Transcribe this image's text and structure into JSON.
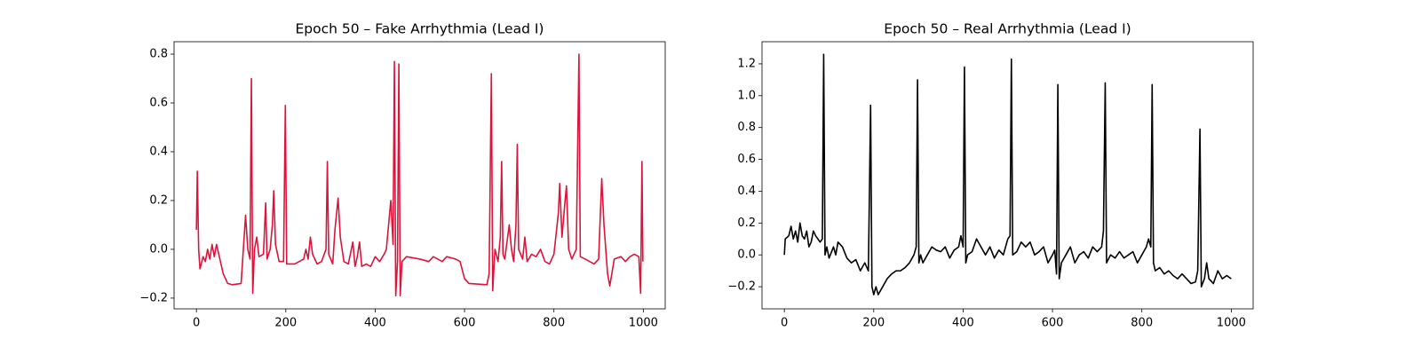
{
  "chart_data": [
    {
      "type": "line",
      "title": "Epoch 50 – Fake Arrhythmia (Lead I)",
      "color": "#dc143c",
      "x": [
        0,
        2,
        5,
        8,
        15,
        20,
        25,
        30,
        35,
        40,
        45,
        50,
        60,
        70,
        80,
        100,
        105,
        110,
        115,
        120,
        123,
        126,
        130,
        135,
        140,
        150,
        155,
        158,
        165,
        170,
        173,
        177,
        185,
        195,
        199,
        202,
        220,
        240,
        245,
        250,
        255,
        260,
        270,
        280,
        290,
        293,
        296,
        305,
        310,
        317,
        322,
        330,
        340,
        350,
        355,
        360,
        365,
        370,
        380,
        390,
        400,
        410,
        420,
        425,
        430,
        435,
        440,
        443,
        446,
        450,
        453,
        456,
        460,
        470,
        500,
        520,
        530,
        540,
        550,
        560,
        580,
        590,
        600,
        610,
        650,
        655,
        660,
        663,
        668,
        675,
        680,
        683,
        686,
        690,
        700,
        705,
        710,
        715,
        718,
        721,
        730,
        735,
        740,
        750,
        760,
        770,
        780,
        790,
        800,
        810,
        813,
        818,
        825,
        828,
        833,
        840,
        850,
        856,
        859,
        870,
        880,
        890,
        900,
        907,
        912,
        920,
        925,
        935,
        950,
        960,
        970,
        980,
        990,
        994,
        997,
        999
      ],
      "values": [
        0.08,
        0.32,
        0.0,
        -0.08,
        -0.03,
        -0.05,
        0.0,
        -0.04,
        0.02,
        -0.03,
        0.02,
        -0.02,
        -0.1,
        -0.14,
        -0.145,
        -0.14,
        0.0,
        0.14,
        0.0,
        -0.04,
        0.7,
        -0.18,
        0.0,
        0.05,
        -0.03,
        -0.02,
        0.19,
        -0.04,
        0.0,
        0.1,
        0.24,
        0.02,
        -0.05,
        -0.05,
        0.59,
        -0.06,
        -0.06,
        -0.04,
        0.0,
        -0.04,
        0.05,
        -0.02,
        -0.06,
        -0.05,
        0.0,
        0.36,
        -0.02,
        -0.06,
        0.08,
        0.21,
        0.05,
        -0.05,
        -0.06,
        0.03,
        -0.07,
        -0.03,
        0.03,
        -0.07,
        -0.06,
        -0.07,
        -0.03,
        -0.05,
        -0.02,
        0.0,
        0.1,
        0.2,
        0.02,
        0.77,
        -0.19,
        -0.05,
        0.76,
        -0.19,
        -0.05,
        -0.03,
        -0.04,
        -0.05,
        -0.03,
        -0.04,
        -0.05,
        -0.03,
        -0.04,
        -0.05,
        -0.12,
        -0.14,
        -0.145,
        -0.1,
        0.72,
        -0.17,
        0.0,
        -0.05,
        0.05,
        0.36,
        -0.02,
        -0.04,
        0.1,
        0.0,
        -0.05,
        0.1,
        0.43,
        0.0,
        -0.04,
        0.05,
        -0.05,
        -0.02,
        -0.03,
        0.0,
        -0.05,
        -0.06,
        -0.02,
        0.15,
        0.27,
        0.05,
        0.2,
        0.26,
        0.0,
        -0.04,
        0.0,
        0.8,
        -0.03,
        -0.04,
        -0.05,
        -0.06,
        -0.04,
        0.29,
        0.1,
        -0.1,
        -0.15,
        -0.04,
        -0.03,
        -0.05,
        -0.03,
        -0.02,
        -0.03,
        -0.18,
        0.36,
        -0.05
      ],
      "xlim": [
        -50,
        1049
      ],
      "xticks": [
        0,
        200,
        400,
        600,
        800,
        1000
      ],
      "ylim": [
        -0.244,
        0.851
      ],
      "yticks": [
        {
          "value": -0.2,
          "label": "−0.2"
        },
        {
          "value": 0,
          "label": "0.0"
        },
        0.2,
        0.4,
        0.6,
        0.8
      ]
    },
    {
      "type": "line",
      "title": "Epoch 50 – Real Arrhythmia (Lead I)",
      "color": "#000000",
      "x": [
        0,
        2,
        10,
        15,
        20,
        25,
        30,
        35,
        40,
        45,
        50,
        55,
        60,
        65,
        70,
        75,
        80,
        85,
        88,
        91,
        95,
        100,
        110,
        115,
        120,
        130,
        140,
        150,
        160,
        170,
        180,
        188,
        193,
        196,
        200,
        205,
        210,
        220,
        230,
        240,
        250,
        260,
        270,
        280,
        290,
        295,
        298,
        301,
        305,
        310,
        320,
        330,
        340,
        350,
        360,
        370,
        380,
        390,
        395,
        400,
        403,
        406,
        410,
        420,
        430,
        440,
        450,
        460,
        470,
        480,
        490,
        500,
        505,
        508,
        511,
        520,
        530,
        540,
        550,
        560,
        570,
        580,
        590,
        600,
        605,
        609,
        612,
        615,
        620,
        630,
        640,
        650,
        660,
        670,
        680,
        690,
        700,
        710,
        714,
        718,
        721,
        730,
        740,
        750,
        760,
        770,
        780,
        790,
        800,
        810,
        815,
        820,
        823,
        826,
        830,
        840,
        850,
        860,
        870,
        880,
        890,
        900,
        910,
        920,
        925,
        930,
        933,
        940,
        945,
        950,
        960,
        970,
        980,
        990,
        1000
      ],
      "values": [
        0.0,
        0.1,
        0.12,
        0.18,
        0.1,
        0.15,
        0.08,
        0.2,
        0.12,
        0.1,
        0.15,
        0.05,
        0.08,
        0.15,
        0.12,
        0.1,
        0.08,
        0.1,
        1.26,
        0.0,
        0.05,
        -0.02,
        0.05,
        0.0,
        0.08,
        0.05,
        -0.02,
        -0.05,
        -0.03,
        -0.1,
        -0.05,
        -0.1,
        0.94,
        -0.2,
        -0.25,
        -0.2,
        -0.25,
        -0.2,
        -0.15,
        -0.12,
        -0.1,
        -0.1,
        -0.08,
        -0.05,
        0.0,
        0.05,
        1.1,
        -0.05,
        0.0,
        -0.05,
        0.0,
        0.05,
        0.03,
        0.02,
        0.05,
        -0.02,
        0.03,
        0.05,
        0.12,
        0.05,
        1.18,
        -0.05,
        0.0,
        0.02,
        0.1,
        0.05,
        0.0,
        0.05,
        -0.02,
        0.03,
        0.0,
        0.1,
        0.12,
        1.23,
        0.0,
        0.02,
        0.08,
        0.05,
        0.08,
        0.0,
        0.02,
        0.05,
        -0.05,
        0.0,
        0.03,
        -0.12,
        1.07,
        -0.15,
        -0.05,
        0.0,
        0.05,
        -0.05,
        0.0,
        0.02,
        -0.02,
        0.05,
        0.02,
        0.05,
        0.15,
        1.08,
        -0.05,
        0.0,
        -0.02,
        0.02,
        -0.02,
        0.0,
        0.02,
        -0.05,
        0.0,
        0.05,
        0.1,
        0.05,
        1.07,
        -0.05,
        -0.1,
        -0.08,
        -0.12,
        -0.1,
        -0.13,
        -0.15,
        -0.12,
        -0.15,
        -0.18,
        -0.17,
        -0.1,
        0.79,
        -0.2,
        -0.15,
        -0.05,
        -0.15,
        -0.18,
        -0.1,
        -0.15,
        -0.13,
        -0.15
      ],
      "xlim": [
        -50,
        1049
      ],
      "xticks": [
        0,
        200,
        400,
        600,
        800,
        1000
      ],
      "ylim": [
        -0.339,
        1.339
      ],
      "yticks": [
        {
          "value": -0.2,
          "label": "−0.2"
        },
        {
          "value": 0,
          "label": "0.0"
        },
        0.2,
        0.4,
        0.6,
        0.8,
        {
          "value": 1.0,
          "label": "1.0"
        },
        1.2
      ]
    }
  ]
}
